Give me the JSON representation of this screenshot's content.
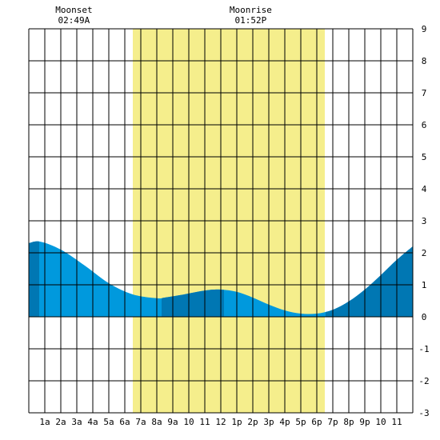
{
  "chart_data": {
    "type": "area",
    "title": "",
    "xlabel": "",
    "ylabel": "",
    "x_range_hours": [
      0,
      24
    ],
    "ylim": [
      -3,
      9
    ],
    "grid": true,
    "x_tick_labels": [
      "1a",
      "2a",
      "3a",
      "4a",
      "5a",
      "6a",
      "7a",
      "8a",
      "9a",
      "10",
      "11",
      "12",
      "1p",
      "2p",
      "3p",
      "4p",
      "5p",
      "6p",
      "7p",
      "8p",
      "9p",
      "10",
      "11"
    ],
    "y_tick_labels": [
      "9",
      "8",
      "7",
      "6",
      "5",
      "4",
      "3",
      "2",
      "1",
      "0",
      "-1",
      "-2",
      "-3"
    ],
    "daylight_hours": [
      6.5,
      18.5
    ],
    "daylight_color": "#f5ee8c",
    "annotations": [
      {
        "label": "Moonset",
        "time": "02:49A",
        "hour": 2.82
      },
      {
        "label": "Moonrise",
        "time": "01:52P",
        "hour": 13.87
      }
    ],
    "series": [
      {
        "x": [
          0,
          0.7,
          2,
          3.5,
          5,
          6.5,
          8,
          8.5,
          9.5,
          11,
          12,
          13,
          14,
          15,
          16,
          17,
          18,
          19,
          20,
          21,
          22,
          23,
          24
        ],
        "values": [
          2.3,
          2.35,
          2.1,
          1.6,
          1.05,
          0.7,
          0.58,
          0.6,
          0.68,
          0.82,
          0.85,
          0.78,
          0.6,
          0.38,
          0.2,
          0.1,
          0.1,
          0.22,
          0.48,
          0.85,
          1.3,
          1.78,
          2.2
        ]
      }
    ],
    "colors": {
      "tide_fill": "#0099dd",
      "tide_dark": "#0077b3",
      "grid": "#000000"
    },
    "dark_segments_hours": [
      [
        0,
        0.65
      ],
      [
        8.3,
        12.2
      ],
      [
        18.55,
        24
      ]
    ]
  }
}
